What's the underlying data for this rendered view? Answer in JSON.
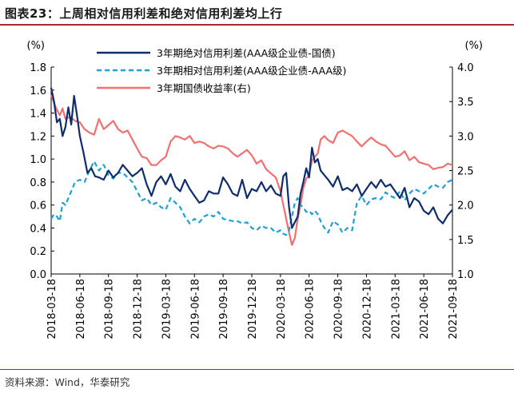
{
  "figure": {
    "title": "图表23：上周相对信用利差和绝对信用利差均上行",
    "source": "资料来源：Wind，华泰研究"
  },
  "chart_data": {
    "type": "line",
    "title": "上周相对信用利差和绝对信用利差均上行",
    "y_left_unit": "(%)",
    "y_right_unit": "(%)",
    "ylim_left": [
      0.0,
      1.8
    ],
    "ylim_right": [
      1.0,
      4.0
    ],
    "y_left_ticks": [
      "0.0",
      "0.2",
      "0.4",
      "0.6",
      "0.8",
      "1.0",
      "1.2",
      "1.4",
      "1.6",
      "1.8"
    ],
    "y_right_ticks": [
      "1.0",
      "1.5",
      "2.0",
      "2.5",
      "3.0",
      "3.5",
      "4.0"
    ],
    "x_range": [
      0,
      42
    ],
    "x_ticks": [
      "2018-03-18",
      "2018-06-18",
      "2018-09-18",
      "2018-12-18",
      "2019-03-18",
      "2019-06-18",
      "2019-09-18",
      "2019-12-18",
      "2020-03-18",
      "2020-06-18",
      "2020-09-18",
      "2020-12-18",
      "2021-03-18",
      "2021-06-18",
      "2021-09-18"
    ],
    "x_tick_months": [
      0,
      3,
      6,
      9,
      12,
      15,
      18,
      21,
      24,
      27,
      30,
      33,
      36,
      39,
      42
    ],
    "x_unit": "months since 2018-03-18",
    "series": [
      {
        "name": "3年期绝对信用利差(AAA级企业债-国债)",
        "axis": "left",
        "color": "#0d2d6e",
        "style": "solid",
        "x": [
          0,
          0.3,
          0.6,
          0.9,
          1.2,
          1.5,
          1.8,
          2.1,
          2.4,
          2.7,
          3.0,
          3.4,
          3.8,
          4.2,
          4.6,
          5.0,
          5.5,
          6.0,
          6.5,
          7.0,
          7.5,
          8.0,
          8.5,
          9.0,
          9.5,
          10.0,
          10.5,
          11.0,
          11.5,
          12.0,
          12.5,
          13.0,
          13.5,
          14.0,
          14.5,
          15.0,
          15.5,
          16.0,
          16.5,
          17.0,
          17.5,
          18.0,
          18.5,
          19.0,
          19.5,
          20.0,
          20.5,
          21.0,
          21.5,
          22.0,
          22.5,
          23.0,
          23.5,
          24.0,
          24.3,
          24.6,
          24.9,
          25.2,
          25.5,
          25.8,
          26.1,
          26.4,
          26.7,
          27.0,
          27.3,
          27.6,
          27.9,
          28.2,
          28.6,
          29.0,
          29.5,
          30.0,
          30.5,
          31.0,
          31.5,
          32.0,
          32.5,
          33.0,
          33.5,
          34.0,
          34.5,
          35.0,
          35.5,
          36.0,
          36.5,
          37.0,
          37.5,
          38.0,
          38.5,
          39.0,
          39.5,
          40.0,
          40.5,
          41.0,
          41.5,
          42.0
        ],
        "y": [
          1.62,
          1.5,
          1.32,
          1.35,
          1.2,
          1.28,
          1.45,
          1.3,
          1.55,
          1.38,
          1.2,
          1.05,
          0.88,
          0.92,
          0.85,
          0.84,
          0.82,
          0.9,
          0.84,
          0.88,
          0.95,
          0.9,
          0.85,
          0.88,
          0.92,
          0.78,
          0.68,
          0.8,
          0.85,
          0.78,
          0.87,
          0.76,
          0.72,
          0.82,
          0.74,
          0.68,
          0.62,
          0.64,
          0.72,
          0.7,
          0.7,
          0.84,
          0.78,
          0.7,
          0.68,
          0.82,
          0.66,
          0.74,
          0.72,
          0.8,
          0.72,
          0.77,
          0.7,
          0.68,
          0.85,
          0.88,
          0.58,
          0.4,
          0.45,
          0.5,
          0.7,
          0.8,
          0.92,
          0.84,
          1.1,
          0.97,
          1.0,
          0.9,
          0.86,
          0.82,
          0.76,
          0.85,
          0.73,
          0.75,
          0.72,
          0.78,
          0.68,
          0.74,
          0.8,
          0.75,
          0.82,
          0.76,
          0.78,
          0.72,
          0.66,
          0.75,
          0.58,
          0.66,
          0.63,
          0.55,
          0.52,
          0.58,
          0.48,
          0.44,
          0.51,
          0.56
        ]
      },
      {
        "name": "3年期相对信用利差(AAA级企业债-AAA级)",
        "axis": "left",
        "color": "#1aa1d8",
        "style": "dashed",
        "x": [
          0,
          0.3,
          0.6,
          0.9,
          1.2,
          1.5,
          2.0,
          2.5,
          3.0,
          3.5,
          4.0,
          4.5,
          5.0,
          5.5,
          6.0,
          6.5,
          7.0,
          7.5,
          8.0,
          8.5,
          9.0,
          9.5,
          10.0,
          10.5,
          11.0,
          11.5,
          12.0,
          12.5,
          13.0,
          13.5,
          14.0,
          14.5,
          15.0,
          15.5,
          16.0,
          16.5,
          17.0,
          17.5,
          18.0,
          18.5,
          19.0,
          19.5,
          20.0,
          20.5,
          21.0,
          21.5,
          22.0,
          22.5,
          23.0,
          23.5,
          24.0,
          24.3,
          24.6,
          24.9,
          25.2,
          25.5,
          25.8,
          26.1,
          26.4,
          26.7,
          27.0,
          27.3,
          27.6,
          27.9,
          28.2,
          28.6,
          29.0,
          29.5,
          30.0,
          30.5,
          31.0,
          31.5,
          32.0,
          32.5,
          33.0,
          33.5,
          34.0,
          34.5,
          35.0,
          35.5,
          36.0,
          36.5,
          37.0,
          37.5,
          38.0,
          38.5,
          39.0,
          39.5,
          40.0,
          40.5,
          41.0,
          41.5,
          42.0
        ],
        "y": [
          0.48,
          0.52,
          0.5,
          0.46,
          0.62,
          0.6,
          0.7,
          0.8,
          0.82,
          0.8,
          0.9,
          0.98,
          0.9,
          0.95,
          0.86,
          0.83,
          0.88,
          0.88,
          0.84,
          0.8,
          0.72,
          0.64,
          0.66,
          0.6,
          0.62,
          0.58,
          0.56,
          0.66,
          0.62,
          0.58,
          0.5,
          0.44,
          0.48,
          0.45,
          0.5,
          0.52,
          0.5,
          0.54,
          0.48,
          0.47,
          0.46,
          0.46,
          0.44,
          0.45,
          0.4,
          0.38,
          0.42,
          0.4,
          0.4,
          0.36,
          0.38,
          0.35,
          0.34,
          0.38,
          0.5,
          0.62,
          0.66,
          0.6,
          0.58,
          0.54,
          0.55,
          0.52,
          0.55,
          0.52,
          0.46,
          0.4,
          0.36,
          0.46,
          0.43,
          0.36,
          0.4,
          0.38,
          0.62,
          0.68,
          0.6,
          0.65,
          0.66,
          0.65,
          0.71,
          0.68,
          0.66,
          0.72,
          0.64,
          0.7,
          0.74,
          0.72,
          0.7,
          0.74,
          0.78,
          0.76,
          0.75,
          0.8,
          0.82
        ]
      },
      {
        "name": "3年期国债收益率(右)",
        "axis": "right",
        "color": "#f27070",
        "style": "solid",
        "x": [
          0,
          0.3,
          0.6,
          0.9,
          1.2,
          1.5,
          2.0,
          2.5,
          3.0,
          3.5,
          4.0,
          4.5,
          5.0,
          5.5,
          6.0,
          6.5,
          7.0,
          7.5,
          8.0,
          8.5,
          9.0,
          9.5,
          10.0,
          10.5,
          11.0,
          11.5,
          12.0,
          12.5,
          13.0,
          13.5,
          14.0,
          14.5,
          15.0,
          15.5,
          16.0,
          16.5,
          17.0,
          17.5,
          18.0,
          18.5,
          19.0,
          19.5,
          20.0,
          20.5,
          21.0,
          21.5,
          22.0,
          22.5,
          23.0,
          23.5,
          24.0,
          24.3,
          24.6,
          24.9,
          25.2,
          25.5,
          25.8,
          26.1,
          26.4,
          26.7,
          27.0,
          27.3,
          27.6,
          27.9,
          28.2,
          28.6,
          29.0,
          29.5,
          30.0,
          30.5,
          31.0,
          31.5,
          32.0,
          32.5,
          33.0,
          33.5,
          34.0,
          34.5,
          35.0,
          35.5,
          36.0,
          36.5,
          37.0,
          37.5,
          38.0,
          38.5,
          39.0,
          39.5,
          40.0,
          40.5,
          41.0,
          41.5,
          42.0
        ],
        "y": [
          3.6,
          3.48,
          3.38,
          3.3,
          3.4,
          3.25,
          3.28,
          3.22,
          3.2,
          3.1,
          3.05,
          3.02,
          3.25,
          3.1,
          3.16,
          3.22,
          3.1,
          3.05,
          3.08,
          2.95,
          2.82,
          2.7,
          2.68,
          2.58,
          2.58,
          2.65,
          2.7,
          2.92,
          3.0,
          2.98,
          2.95,
          3.0,
          2.9,
          2.92,
          2.9,
          2.85,
          2.82,
          2.86,
          2.85,
          2.82,
          2.75,
          2.7,
          2.75,
          2.8,
          2.72,
          2.6,
          2.65,
          2.52,
          2.46,
          2.4,
          2.2,
          2.0,
          1.8,
          1.6,
          1.42,
          1.52,
          1.8,
          2.0,
          2.25,
          2.38,
          2.44,
          2.65,
          2.7,
          2.75,
          2.95,
          3.0,
          2.94,
          2.9,
          3.05,
          3.08,
          3.04,
          3.0,
          2.92,
          2.85,
          2.92,
          2.98,
          2.92,
          2.88,
          2.86,
          2.78,
          2.7,
          2.72,
          2.78,
          2.65,
          2.7,
          2.62,
          2.6,
          2.58,
          2.52,
          2.54,
          2.55,
          2.6,
          2.58
        ]
      }
    ]
  }
}
